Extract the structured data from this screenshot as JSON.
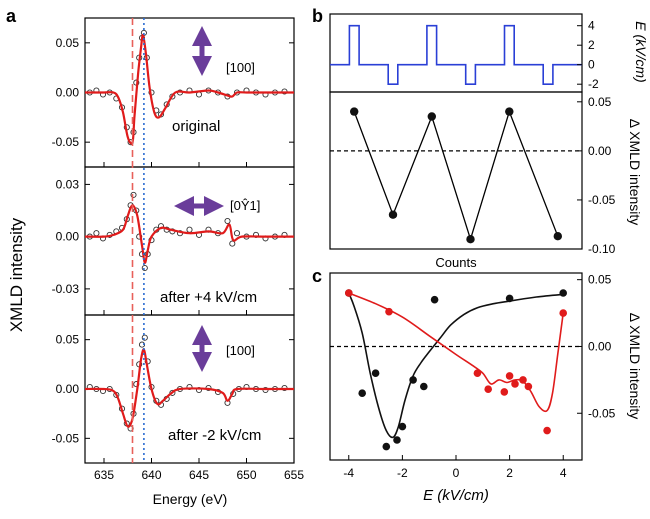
{
  "panel_labels": {
    "a": "a",
    "b": "b",
    "c": "c"
  },
  "chart_data": [
    {
      "id": "a-top",
      "type": "line",
      "xlim": [
        633,
        655
      ],
      "ylim": [
        -0.075,
        0.075
      ],
      "yticks": [
        -0.05,
        0.0,
        0.05
      ],
      "ytick_labels": [
        "-0.05",
        "0.00",
        "0.05"
      ],
      "annotation": "original",
      "direction_label": "[100]",
      "arrow": "vertical",
      "curve": [
        [
          633,
          0.0
        ],
        [
          635,
          0.0
        ],
        [
          636,
          0.0
        ],
        [
          636.5,
          -0.005
        ],
        [
          637,
          -0.02
        ],
        [
          637.5,
          -0.045
        ],
        [
          638,
          -0.05
        ],
        [
          638.2,
          -0.025
        ],
        [
          638.6,
          0.02
        ],
        [
          638.9,
          0.045
        ],
        [
          639.1,
          0.058
        ],
        [
          639.4,
          0.04
        ],
        [
          639.8,
          0.005
        ],
        [
          640.3,
          -0.02
        ],
        [
          640.8,
          -0.025
        ],
        [
          641.5,
          -0.015
        ],
        [
          642.5,
          0.0
        ],
        [
          644,
          0.0
        ],
        [
          646,
          0.002
        ],
        [
          647,
          0.0
        ],
        [
          648,
          -0.003
        ],
        [
          648.5,
          -0.004
        ],
        [
          649,
          0.0
        ],
        [
          650,
          0.0
        ],
        [
          652,
          0.0
        ],
        [
          655,
          0.0
        ]
      ],
      "points": [
        [
          633.5,
          0.0
        ],
        [
          634.2,
          0.002
        ],
        [
          634.9,
          -0.002
        ],
        [
          635.6,
          0.0
        ],
        [
          636.3,
          -0.006
        ],
        [
          636.9,
          -0.015
        ],
        [
          637.4,
          -0.035
        ],
        [
          637.8,
          -0.05
        ],
        [
          638.1,
          -0.04
        ],
        [
          638.4,
          0.01
        ],
        [
          638.7,
          0.035
        ],
        [
          639.0,
          0.055
        ],
        [
          639.2,
          0.06
        ],
        [
          639.5,
          0.035
        ],
        [
          640.0,
          0.0
        ],
        [
          640.5,
          -0.018
        ],
        [
          641.0,
          -0.022
        ],
        [
          641.6,
          -0.012
        ],
        [
          642.2,
          -0.004
        ],
        [
          643.0,
          0.0
        ],
        [
          644.0,
          0.002
        ],
        [
          645.0,
          -0.002
        ],
        [
          646.0,
          0.002
        ],
        [
          647.0,
          0.0
        ],
        [
          648.0,
          -0.004
        ],
        [
          649.0,
          0.0
        ],
        [
          650.0,
          0.002
        ],
        [
          651.0,
          0.0
        ],
        [
          652.0,
          -0.002
        ],
        [
          653.0,
          0.0
        ],
        [
          654.0,
          0.001
        ]
      ]
    },
    {
      "id": "a-middle",
      "type": "line",
      "xlim": [
        633,
        655
      ],
      "ylim": [
        -0.045,
        0.04
      ],
      "yticks": [
        -0.03,
        0.0,
        0.03
      ],
      "ytick_labels": [
        "-0.03",
        "0.00",
        "0.03"
      ],
      "annotation": "after +4 kV/cm",
      "direction_label": "[0Ŷ1]",
      "arrow": "horizontal",
      "curve": [
        [
          633,
          0.0
        ],
        [
          635,
          0.0
        ],
        [
          636,
          0.001
        ],
        [
          637,
          0.004
        ],
        [
          637.5,
          0.012
        ],
        [
          638,
          0.018
        ],
        [
          638.5,
          0.012
        ],
        [
          639,
          -0.005
        ],
        [
          639.3,
          -0.015
        ],
        [
          639.6,
          -0.008
        ],
        [
          640,
          0.0
        ],
        [
          641,
          0.005
        ],
        [
          642,
          0.004
        ],
        [
          644,
          0.002
        ],
        [
          646,
          0.003
        ],
        [
          647.5,
          0.002
        ],
        [
          648.2,
          0.007
        ],
        [
          648.6,
          -0.002
        ],
        [
          649.5,
          0.0
        ],
        [
          652,
          0.0
        ],
        [
          655,
          0.0
        ]
      ],
      "points": [
        [
          633.5,
          0.0
        ],
        [
          634.2,
          0.002
        ],
        [
          634.9,
          -0.001
        ],
        [
          635.6,
          0.001
        ],
        [
          636.3,
          0.003
        ],
        [
          636.9,
          0.005
        ],
        [
          637.4,
          0.01
        ],
        [
          637.8,
          0.018
        ],
        [
          638.1,
          0.024
        ],
        [
          638.4,
          0.015
        ],
        [
          638.7,
          0.0
        ],
        [
          639.0,
          -0.01
        ],
        [
          639.3,
          -0.018
        ],
        [
          639.6,
          -0.01
        ],
        [
          640.0,
          -0.002
        ],
        [
          640.5,
          0.004
        ],
        [
          641.0,
          0.006
        ],
        [
          641.6,
          0.004
        ],
        [
          642.2,
          0.003
        ],
        [
          643.0,
          0.002
        ],
        [
          644.0,
          0.004
        ],
        [
          645.0,
          0.001
        ],
        [
          646.0,
          0.004
        ],
        [
          647.0,
          0.002
        ],
        [
          648.0,
          0.009
        ],
        [
          648.5,
          -0.004
        ],
        [
          649.0,
          0.002
        ],
        [
          650.0,
          0.0
        ],
        [
          651.0,
          0.001
        ],
        [
          652.0,
          -0.001
        ],
        [
          653.0,
          0.0
        ],
        [
          654.0,
          0.001
        ]
      ]
    },
    {
      "id": "a-bottom",
      "type": "line",
      "xlim": [
        633,
        655
      ],
      "xticks": [
        635,
        640,
        645,
        650,
        655
      ],
      "xtick_labels": [
        "635",
        "640",
        "645",
        "650",
        "655"
      ],
      "ylim": [
        -0.075,
        0.075
      ],
      "yticks": [
        -0.05,
        0.0,
        0.05
      ],
      "ytick_labels": [
        "-0.05",
        "0.00",
        "0.05"
      ],
      "annotation": "after -2 kV/cm",
      "direction_label": "[100]",
      "arrow": "vertical",
      "xlabel": "Energy (eV)",
      "curve": [
        [
          633,
          0.0
        ],
        [
          635,
          0.0
        ],
        [
          636,
          -0.002
        ],
        [
          636.5,
          -0.01
        ],
        [
          637,
          -0.025
        ],
        [
          637.5,
          -0.038
        ],
        [
          638,
          -0.03
        ],
        [
          638.5,
          0.0
        ],
        [
          638.9,
          0.03
        ],
        [
          639.2,
          0.04
        ],
        [
          639.5,
          0.025
        ],
        [
          640,
          0.0
        ],
        [
          640.6,
          -0.015
        ],
        [
          641.2,
          -0.012
        ],
        [
          642,
          -0.005
        ],
        [
          643,
          0.0
        ],
        [
          646,
          0.0
        ],
        [
          647.5,
          -0.004
        ],
        [
          648,
          -0.012
        ],
        [
          648.5,
          -0.005
        ],
        [
          649,
          0.0
        ],
        [
          652,
          0.0
        ],
        [
          655,
          0.0
        ]
      ],
      "points": [
        [
          633.5,
          0.002
        ],
        [
          634.2,
          0.0
        ],
        [
          634.9,
          -0.002
        ],
        [
          635.6,
          0.0
        ],
        [
          636.3,
          -0.006
        ],
        [
          636.9,
          -0.02
        ],
        [
          637.4,
          -0.035
        ],
        [
          637.8,
          -0.04
        ],
        [
          638.1,
          -0.025
        ],
        [
          638.4,
          0.005
        ],
        [
          638.7,
          0.025
        ],
        [
          639.0,
          0.045
        ],
        [
          639.3,
          0.052
        ],
        [
          639.6,
          0.028
        ],
        [
          640.0,
          0.002
        ],
        [
          640.5,
          -0.012
        ],
        [
          641.0,
          -0.016
        ],
        [
          641.6,
          -0.01
        ],
        [
          642.2,
          -0.004
        ],
        [
          643.0,
          0.0
        ],
        [
          644.0,
          0.002
        ],
        [
          645.0,
          -0.001
        ],
        [
          646.0,
          0.001
        ],
        [
          647.0,
          -0.003
        ],
        [
          648.0,
          -0.014
        ],
        [
          648.6,
          -0.005
        ],
        [
          649.2,
          0.0
        ],
        [
          650.0,
          0.002
        ],
        [
          651.0,
          0.0
        ],
        [
          652.0,
          -0.001
        ],
        [
          653.0,
          0.0
        ],
        [
          654.0,
          0.001
        ]
      ]
    },
    {
      "id": "a-common",
      "ylabel": "XMLD intensity",
      "red_dashed_line_x": 638.0,
      "blue_dotted_line_x": 639.2
    },
    {
      "id": "b-top",
      "type": "line",
      "ylabel": "E (kV/cm)",
      "ylim": [
        -2.8,
        5.2
      ],
      "yticks": [
        4,
        2,
        0,
        -2
      ],
      "ytick_labels": [
        "4",
        "2",
        "0",
        "-2"
      ],
      "xlim": [
        0,
        26
      ],
      "step": [
        [
          0,
          0
        ],
        [
          2,
          0
        ],
        [
          2,
          4
        ],
        [
          3,
          4
        ],
        [
          3,
          0
        ],
        [
          6,
          0
        ],
        [
          6,
          -2
        ],
        [
          7,
          -2
        ],
        [
          7,
          0
        ],
        [
          10,
          0
        ],
        [
          10,
          4
        ],
        [
          11,
          4
        ],
        [
          11,
          0
        ],
        [
          14,
          0
        ],
        [
          14,
          -2
        ],
        [
          15,
          -2
        ],
        [
          15,
          0
        ],
        [
          18,
          0
        ],
        [
          18,
          4
        ],
        [
          19,
          4
        ],
        [
          19,
          0
        ],
        [
          22,
          0
        ],
        [
          22,
          -2
        ],
        [
          23,
          -2
        ],
        [
          23,
          0
        ],
        [
          26,
          0
        ]
      ]
    },
    {
      "id": "b-bottom",
      "type": "line",
      "xlabel": "Counts",
      "ylabel": "Δ XMLD  intensity",
      "xlim": [
        0,
        26
      ],
      "ylim": [
        -0.1,
        0.06
      ],
      "yticks": [
        0.05,
        0.0,
        -0.05,
        -0.1
      ],
      "ytick_labels": [
        "0.05",
        "0.00",
        "-0.05",
        "-0.10"
      ],
      "values": [
        [
          2.5,
          0.04
        ],
        [
          6.5,
          -0.065
        ],
        [
          10.5,
          0.035
        ],
        [
          14.5,
          -0.09
        ],
        [
          18.5,
          0.04
        ],
        [
          23.5,
          -0.087
        ]
      ],
      "zero_line": true
    },
    {
      "id": "c",
      "type": "scatter",
      "xlabel": "E (kV/cm)",
      "ylabel": "Δ XMLD  intensity",
      "xlim": [
        -4.7,
        4.7
      ],
      "ylim": [
        -0.085,
        0.055
      ],
      "xticks": [
        -4,
        -2,
        0,
        2,
        4
      ],
      "xtick_labels": [
        "-4",
        "-2",
        "0",
        "2",
        "4"
      ],
      "yticks": [
        0.05,
        0.0,
        -0.05
      ],
      "ytick_labels": [
        "0.05",
        "0.00",
        "-0.05"
      ],
      "zero_line": true,
      "series": [
        {
          "color": "#111111",
          "points": [
            [
              -4,
              0.04
            ],
            [
              -3.5,
              -0.035
            ],
            [
              -3,
              -0.02
            ],
            [
              -2.6,
              -0.075
            ],
            [
              -2.2,
              -0.07
            ],
            [
              -2,
              -0.06
            ],
            [
              -1.6,
              -0.025
            ],
            [
              -1.2,
              -0.03
            ],
            [
              -0.8,
              0.035
            ],
            [
              2,
              0.036
            ],
            [
              4,
              0.04
            ]
          ],
          "curve": [
            [
              -4,
              0.04
            ],
            [
              -3.8,
              0.03
            ],
            [
              -3.5,
              0.01
            ],
            [
              -3.2,
              -0.02
            ],
            [
              -2.9,
              -0.045
            ],
            [
              -2.6,
              -0.063
            ],
            [
              -2.35,
              -0.068
            ],
            [
              -2.15,
              -0.06
            ],
            [
              -1.9,
              -0.04
            ],
            [
              -1.6,
              -0.022
            ],
            [
              -1.3,
              -0.012
            ],
            [
              -1.0,
              -0.004
            ],
            [
              -0.6,
              0.006
            ],
            [
              -0.2,
              0.016
            ],
            [
              0.3,
              0.024
            ],
            [
              0.8,
              0.029
            ],
            [
              1.4,
              0.032
            ],
            [
              2,
              0.034
            ],
            [
              3,
              0.037
            ],
            [
              4,
              0.039
            ]
          ]
        },
        {
          "color": "#e01b1b",
          "points": [
            [
              -4,
              0.04
            ],
            [
              -2.5,
              0.026
            ],
            [
              0.8,
              -0.02
            ],
            [
              1.2,
              -0.032
            ],
            [
              1.8,
              -0.034
            ],
            [
              2,
              -0.022
            ],
            [
              2.2,
              -0.028
            ],
            [
              2.5,
              -0.025
            ],
            [
              2.7,
              -0.03
            ],
            [
              3.4,
              -0.063
            ],
            [
              4,
              0.025
            ]
          ],
          "curve": [
            [
              -4,
              0.04
            ],
            [
              -3,
              0.032
            ],
            [
              -2,
              0.022
            ],
            [
              -1,
              0.008
            ],
            [
              0,
              -0.006
            ],
            [
              0.6,
              -0.014
            ],
            [
              1.0,
              -0.02
            ],
            [
              1.3,
              -0.028
            ],
            [
              1.6,
              -0.025
            ],
            [
              1.9,
              -0.027
            ],
            [
              2.2,
              -0.025
            ],
            [
              2.5,
              -0.026
            ],
            [
              2.8,
              -0.034
            ],
            [
              3.1,
              -0.045
            ],
            [
              3.4,
              -0.048
            ],
            [
              3.6,
              -0.035
            ],
            [
              3.8,
              -0.005
            ],
            [
              4,
              0.025
            ]
          ]
        }
      ]
    }
  ]
}
